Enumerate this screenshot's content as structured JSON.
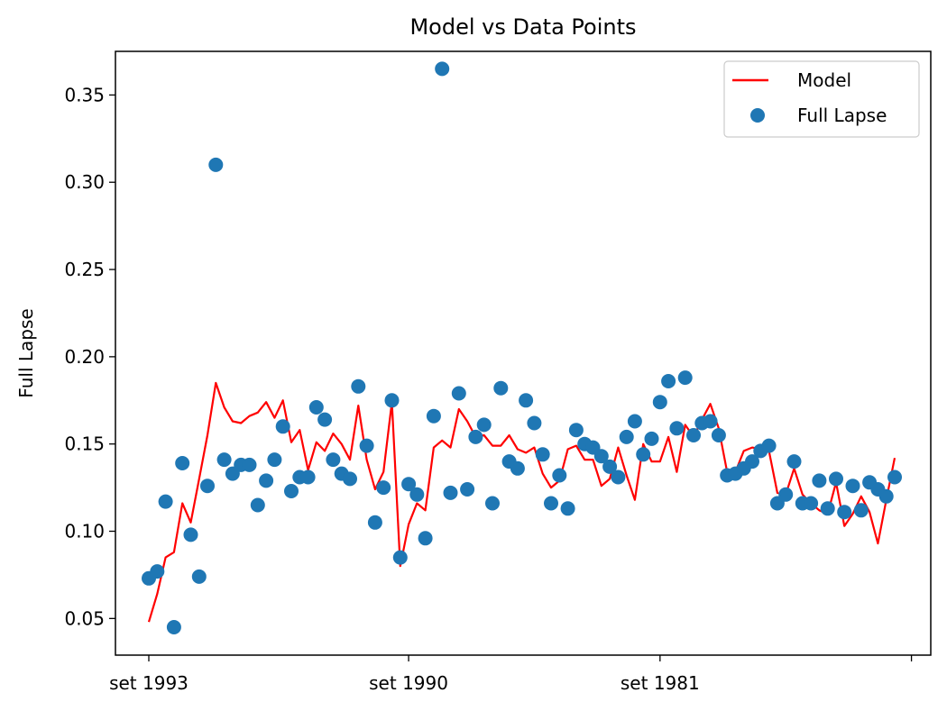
{
  "chart_data": {
    "type": "line",
    "title": "Model vs Data Points",
    "xlabel": "",
    "ylabel": "Full Lapse",
    "x_tick_labels": [
      "set 1993",
      "set 1990",
      "set 1981",
      ""
    ],
    "y_ticks": [
      0.05,
      0.1,
      0.15,
      0.2,
      0.25,
      0.3,
      0.35
    ],
    "ylim": [
      0.029,
      0.375
    ],
    "x_count": 90,
    "x_tick_positions": [
      0,
      31,
      61,
      91
    ],
    "legend_position": "top-right",
    "colors": {
      "model": "#ff0000",
      "points": "#1f77b4",
      "axis": "#000000"
    },
    "series": [
      {
        "name": "Model",
        "kind": "line",
        "values": [
          0.048,
          0.064,
          0.085,
          0.088,
          0.116,
          0.105,
          0.13,
          0.155,
          0.185,
          0.171,
          0.163,
          0.162,
          0.166,
          0.168,
          0.174,
          0.165,
          0.175,
          0.151,
          0.158,
          0.135,
          0.151,
          0.146,
          0.156,
          0.15,
          0.141,
          0.172,
          0.141,
          0.124,
          0.134,
          0.174,
          0.08,
          0.104,
          0.116,
          0.112,
          0.148,
          0.152,
          0.148,
          0.17,
          0.163,
          0.154,
          0.155,
          0.149,
          0.149,
          0.155,
          0.147,
          0.145,
          0.148,
          0.133,
          0.125,
          0.129,
          0.147,
          0.149,
          0.141,
          0.141,
          0.126,
          0.13,
          0.148,
          0.132,
          0.118,
          0.15,
          0.14,
          0.14,
          0.154,
          0.134,
          0.161,
          0.154,
          0.164,
          0.173,
          0.159,
          0.134,
          0.134,
          0.146,
          0.148,
          0.147,
          0.146,
          0.122,
          0.121,
          0.136,
          0.121,
          0.116,
          0.112,
          0.11,
          0.128,
          0.103,
          0.11,
          0.12,
          0.111,
          0.093,
          0.118,
          0.142
        ]
      },
      {
        "name": "Full Lapse",
        "kind": "scatter",
        "values": [
          0.073,
          0.077,
          0.117,
          0.045,
          0.139,
          0.098,
          0.074,
          0.126,
          0.31,
          0.141,
          0.133,
          0.138,
          0.138,
          0.115,
          0.129,
          0.141,
          0.16,
          0.123,
          0.131,
          0.131,
          0.171,
          0.164,
          0.141,
          0.133,
          0.13,
          0.183,
          0.149,
          0.105,
          0.125,
          0.175,
          0.085,
          0.127,
          0.121,
          0.096,
          0.166,
          0.365,
          0.122,
          0.179,
          0.124,
          0.154,
          0.161,
          0.116,
          0.182,
          0.14,
          0.136,
          0.175,
          0.162,
          0.144,
          0.116,
          0.132,
          0.113,
          0.158,
          0.15,
          0.148,
          0.143,
          0.137,
          0.131,
          0.154,
          0.163,
          0.144,
          0.153,
          0.174,
          0.186,
          0.159,
          0.188,
          0.155,
          0.162,
          0.163,
          0.155,
          0.132,
          0.133,
          0.136,
          0.14,
          0.146,
          0.149,
          0.116,
          0.121,
          0.14,
          0.116,
          0.116,
          0.129,
          0.113,
          0.13,
          0.111,
          0.126,
          0.112,
          0.128,
          0.124,
          0.12,
          0.131
        ]
      }
    ]
  }
}
